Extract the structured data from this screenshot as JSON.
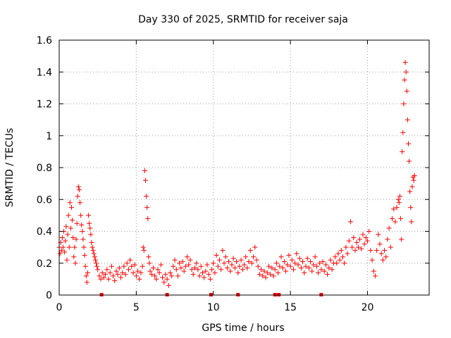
{
  "chart_data": {
    "type": "scatter",
    "title": "Day 330 of 2025, SRMTID for receiver saja",
    "xlabel": "GPS time / hours",
    "ylabel": "SRMTID / TECUs",
    "xlim": [
      0,
      24
    ],
    "ylim": [
      0,
      1.6
    ],
    "xticks": [
      0,
      5,
      10,
      15,
      20
    ],
    "xtick_labels": [
      "0",
      "5",
      "10",
      "15",
      "20"
    ],
    "yticks": [
      0,
      0.2,
      0.4,
      0.6,
      0.8,
      1.0,
      1.2,
      1.4,
      1.6
    ],
    "ytick_labels": [
      "0",
      "0.2",
      "0.4",
      "0.6",
      "0.8",
      "1",
      "1.2",
      "1.4",
      "1.6"
    ],
    "grid": true,
    "marker": "plus",
    "series": [
      {
        "name": "SRMTID",
        "color": "#ff0000",
        "points": [
          [
            0.0,
            0.3
          ],
          [
            0.05,
            0.26
          ],
          [
            0.1,
            0.33
          ],
          [
            0.15,
            0.28
          ],
          [
            0.2,
            0.36
          ],
          [
            0.25,
            0.3
          ],
          [
            0.3,
            0.4
          ],
          [
            0.35,
            0.27
          ],
          [
            0.4,
            0.34
          ],
          [
            0.45,
            0.43
          ],
          [
            0.5,
            0.22
          ],
          [
            0.55,
            0.38
          ],
          [
            0.6,
            0.5
          ],
          [
            0.65,
            0.3
          ],
          [
            0.7,
            0.58
          ],
          [
            0.75,
            0.42
          ],
          [
            0.8,
            0.55
          ],
          [
            0.85,
            0.47
          ],
          [
            0.9,
            0.36
          ],
          [
            0.95,
            0.24
          ],
          [
            1.0,
            0.3
          ],
          [
            1.05,
            0.2
          ],
          [
            1.1,
            0.35
          ],
          [
            1.15,
            0.45
          ],
          [
            1.2,
            0.62
          ],
          [
            1.25,
            0.68
          ],
          [
            1.3,
            0.66
          ],
          [
            1.35,
            0.58
          ],
          [
            1.4,
            0.5
          ],
          [
            1.45,
            0.44
          ],
          [
            1.5,
            0.4
          ],
          [
            1.55,
            0.35
          ],
          [
            1.6,
            0.3
          ],
          [
            1.65,
            0.25
          ],
          [
            1.7,
            0.18
          ],
          [
            1.75,
            0.12
          ],
          [
            1.8,
            0.08
          ],
          [
            1.85,
            0.14
          ],
          [
            1.9,
            0.5
          ],
          [
            1.95,
            0.45
          ],
          [
            2.0,
            0.42
          ],
          [
            2.05,
            0.38
          ],
          [
            2.1,
            0.33
          ],
          [
            2.15,
            0.3
          ],
          [
            2.2,
            0.28
          ],
          [
            2.25,
            0.26
          ],
          [
            2.3,
            0.24
          ],
          [
            2.35,
            0.22
          ],
          [
            2.4,
            0.2
          ],
          [
            2.45,
            0.18
          ],
          [
            2.5,
            0.16
          ],
          [
            2.6,
            0.12
          ],
          [
            2.7,
            0.1
          ],
          [
            2.8,
            0.14
          ],
          [
            2.9,
            0.11
          ],
          [
            3.0,
            0.13
          ],
          [
            3.1,
            0.16
          ],
          [
            3.2,
            0.1
          ],
          [
            3.3,
            0.14
          ],
          [
            3.4,
            0.18
          ],
          [
            3.5,
            0.12
          ],
          [
            3.6,
            0.09
          ],
          [
            3.7,
            0.15
          ],
          [
            3.8,
            0.13
          ],
          [
            3.9,
            0.17
          ],
          [
            4.0,
            0.11
          ],
          [
            4.1,
            0.14
          ],
          [
            4.2,
            0.18
          ],
          [
            4.3,
            0.13
          ],
          [
            4.4,
            0.2
          ],
          [
            4.5,
            0.16
          ],
          [
            4.6,
            0.22
          ],
          [
            4.7,
            0.18
          ],
          [
            4.8,
            0.14
          ],
          [
            4.9,
            0.19
          ],
          [
            5.0,
            0.12
          ],
          [
            5.1,
            0.15
          ],
          [
            5.2,
            0.1
          ],
          [
            5.3,
            0.14
          ],
          [
            5.4,
            0.18
          ],
          [
            5.45,
            0.3
          ],
          [
            5.5,
            0.28
          ],
          [
            5.55,
            0.78
          ],
          [
            5.6,
            0.72
          ],
          [
            5.65,
            0.62
          ],
          [
            5.7,
            0.55
          ],
          [
            5.75,
            0.48
          ],
          [
            5.8,
            0.24
          ],
          [
            5.85,
            0.2
          ],
          [
            5.9,
            0.15
          ],
          [
            6.0,
            0.13
          ],
          [
            6.1,
            0.17
          ],
          [
            6.2,
            0.12
          ],
          [
            6.3,
            0.1
          ],
          [
            6.4,
            0.16
          ],
          [
            6.5,
            0.14
          ],
          [
            6.6,
            0.19
          ],
          [
            6.7,
            0.11
          ],
          [
            6.8,
            0.08
          ],
          [
            6.9,
            0.13
          ],
          [
            7.0,
            0.1
          ],
          [
            7.1,
            0.06
          ],
          [
            7.2,
            0.14
          ],
          [
            7.3,
            0.12
          ],
          [
            7.4,
            0.18
          ],
          [
            7.5,
            0.22
          ],
          [
            7.6,
            0.16
          ],
          [
            7.7,
            0.12
          ],
          [
            7.8,
            0.2
          ],
          [
            7.9,
            0.17
          ],
          [
            8.0,
            0.21
          ],
          [
            8.1,
            0.15
          ],
          [
            8.2,
            0.18
          ],
          [
            8.3,
            0.24
          ],
          [
            8.4,
            0.19
          ],
          [
            8.5,
            0.22
          ],
          [
            8.6,
            0.16
          ],
          [
            8.7,
            0.13
          ],
          [
            8.8,
            0.17
          ],
          [
            8.9,
            0.2
          ],
          [
            9.0,
            0.16
          ],
          [
            9.1,
            0.12
          ],
          [
            9.2,
            0.18
          ],
          [
            9.3,
            0.14
          ],
          [
            9.4,
            0.11
          ],
          [
            9.5,
            0.15
          ],
          [
            9.6,
            0.19
          ],
          [
            9.7,
            0.13
          ],
          [
            9.8,
            0.1
          ],
          [
            9.9,
            0.16
          ],
          [
            10.0,
            0.2
          ],
          [
            10.1,
            0.14
          ],
          [
            10.2,
            0.25
          ],
          [
            10.3,
            0.18
          ],
          [
            10.4,
            0.22
          ],
          [
            10.5,
            0.16
          ],
          [
            10.6,
            0.28
          ],
          [
            10.7,
            0.2
          ],
          [
            10.8,
            0.24
          ],
          [
            10.9,
            0.17
          ],
          [
            11.0,
            0.21
          ],
          [
            11.1,
            0.15
          ],
          [
            11.2,
            0.19
          ],
          [
            11.3,
            0.23
          ],
          [
            11.4,
            0.17
          ],
          [
            11.5,
            0.21
          ],
          [
            11.6,
            0.14
          ],
          [
            11.7,
            0.18
          ],
          [
            11.8,
            0.22
          ],
          [
            11.9,
            0.16
          ],
          [
            12.0,
            0.19
          ],
          [
            12.1,
            0.24
          ],
          [
            12.2,
            0.17
          ],
          [
            12.3,
            0.21
          ],
          [
            12.4,
            0.28
          ],
          [
            12.5,
            0.2
          ],
          [
            12.6,
            0.24
          ],
          [
            12.7,
            0.3
          ],
          [
            12.8,
            0.22
          ],
          [
            12.9,
            0.18
          ],
          [
            13.0,
            0.13
          ],
          [
            13.1,
            0.16
          ],
          [
            13.2,
            0.12
          ],
          [
            13.3,
            0.15
          ],
          [
            13.4,
            0.11
          ],
          [
            13.5,
            0.14
          ],
          [
            13.6,
            0.18
          ],
          [
            13.7,
            0.13
          ],
          [
            13.8,
            0.17
          ],
          [
            13.9,
            0.12
          ],
          [
            14.0,
            0.16
          ],
          [
            14.1,
            0.2
          ],
          [
            14.2,
            0.14
          ],
          [
            14.3,
            0.18
          ],
          [
            14.4,
            0.24
          ],
          [
            14.5,
            0.17
          ],
          [
            14.6,
            0.21
          ],
          [
            14.7,
            0.15
          ],
          [
            14.8,
            0.19
          ],
          [
            14.9,
            0.25
          ],
          [
            15.0,
            0.18
          ],
          [
            15.1,
            0.22
          ],
          [
            15.2,
            0.16
          ],
          [
            15.3,
            0.2
          ],
          [
            15.4,
            0.26
          ],
          [
            15.5,
            0.19
          ],
          [
            15.6,
            0.23
          ],
          [
            15.7,
            0.17
          ],
          [
            15.8,
            0.21
          ],
          [
            15.9,
            0.14
          ],
          [
            16.0,
            0.18
          ],
          [
            16.1,
            0.23
          ],
          [
            16.2,
            0.17
          ],
          [
            16.3,
            0.21
          ],
          [
            16.4,
            0.15
          ],
          [
            16.5,
            0.19
          ],
          [
            16.6,
            0.24
          ],
          [
            16.7,
            0.18
          ],
          [
            16.8,
            0.14
          ],
          [
            16.9,
            0.2
          ],
          [
            17.0,
            0.16
          ],
          [
            17.1,
            0.21
          ],
          [
            17.2,
            0.15
          ],
          [
            17.3,
            0.19
          ],
          [
            17.4,
            0.13
          ],
          [
            17.5,
            0.17
          ],
          [
            17.6,
            0.22
          ],
          [
            17.7,
            0.16
          ],
          [
            17.8,
            0.2
          ],
          [
            17.9,
            0.24
          ],
          [
            18.0,
            0.2
          ],
          [
            18.1,
            0.26
          ],
          [
            18.2,
            0.22
          ],
          [
            18.3,
            0.28
          ],
          [
            18.4,
            0.24
          ],
          [
            18.5,
            0.2
          ],
          [
            18.6,
            0.3
          ],
          [
            18.7,
            0.26
          ],
          [
            18.8,
            0.34
          ],
          [
            18.9,
            0.46
          ],
          [
            19.0,
            0.3
          ],
          [
            19.1,
            0.36
          ],
          [
            19.2,
            0.28
          ],
          [
            19.3,
            0.33
          ],
          [
            19.4,
            0.3
          ],
          [
            19.5,
            0.35
          ],
          [
            19.6,
            0.29
          ],
          [
            19.7,
            0.38
          ],
          [
            19.8,
            0.32
          ],
          [
            19.9,
            0.36
          ],
          [
            20.0,
            0.34
          ],
          [
            20.1,
            0.4
          ],
          [
            20.2,
            0.28
          ],
          [
            20.3,
            0.22
          ],
          [
            20.4,
            0.15
          ],
          [
            20.5,
            0.12
          ],
          [
            20.6,
            0.28
          ],
          [
            20.7,
            0.38
          ],
          [
            20.8,
            0.32
          ],
          [
            20.9,
            0.26
          ],
          [
            21.0,
            0.22
          ],
          [
            21.1,
            0.28
          ],
          [
            21.2,
            0.24
          ],
          [
            21.3,
            0.35
          ],
          [
            21.4,
            0.42
          ],
          [
            21.5,
            0.3
          ],
          [
            21.6,
            0.48
          ],
          [
            21.7,
            0.54
          ],
          [
            21.8,
            0.46
          ],
          [
            21.9,
            0.55
          ],
          [
            22.0,
            0.6
          ],
          [
            22.05,
            0.58
          ],
          [
            22.1,
            0.62
          ],
          [
            22.15,
            0.48
          ],
          [
            22.2,
            0.35
          ],
          [
            22.25,
            0.9
          ],
          [
            22.3,
            1.02
          ],
          [
            22.35,
            1.2
          ],
          [
            22.4,
            1.35
          ],
          [
            22.45,
            1.46
          ],
          [
            22.5,
            1.4
          ],
          [
            22.55,
            1.28
          ],
          [
            22.6,
            1.1
          ],
          [
            22.65,
            0.95
          ],
          [
            22.7,
            0.84
          ],
          [
            22.75,
            0.65
          ],
          [
            22.8,
            0.55
          ],
          [
            22.85,
            0.46
          ],
          [
            22.9,
            0.68
          ],
          [
            22.95,
            0.74
          ],
          [
            23.0,
            0.72
          ],
          [
            23.05,
            0.75
          ]
        ]
      }
    ],
    "bottom_markers_x": [
      2.75,
      7.0,
      9.85,
      11.6,
      14.0,
      14.25,
      17.0
    ]
  }
}
